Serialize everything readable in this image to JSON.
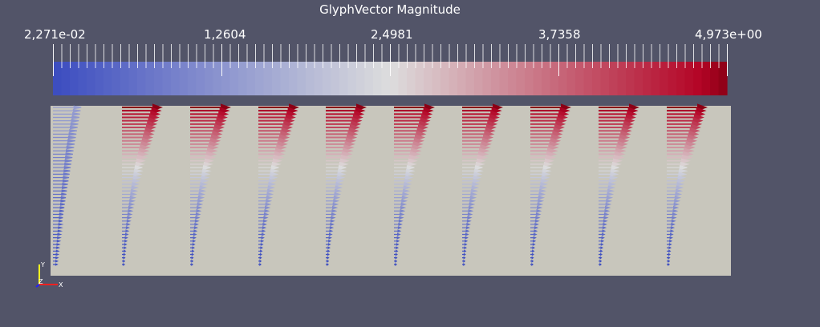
{
  "scalar_bar": {
    "title": "GlyphVector Magnitude",
    "labels": [
      "2,271e-02",
      "1,2604",
      "2,4981",
      "3,7358",
      "4,973e+00"
    ],
    "range": [
      0.02271,
      4.973
    ],
    "colormap": {
      "name": "Cool to Warm",
      "low": "#3b4cc0",
      "mid": "#dddddd",
      "high": "#b40426",
      "top": "#8a0015"
    }
  },
  "scene": {
    "background": "#525468",
    "plane_color": "#c8c6bc",
    "glyph_columns": 10,
    "glyph_rows": 48
  },
  "orientation_axes": {
    "x_label": "X",
    "y_label": "Y",
    "z_label": "Z",
    "x_color": "#ff2020",
    "y_color": "#ffff20",
    "z_color": "#2020ff"
  }
}
